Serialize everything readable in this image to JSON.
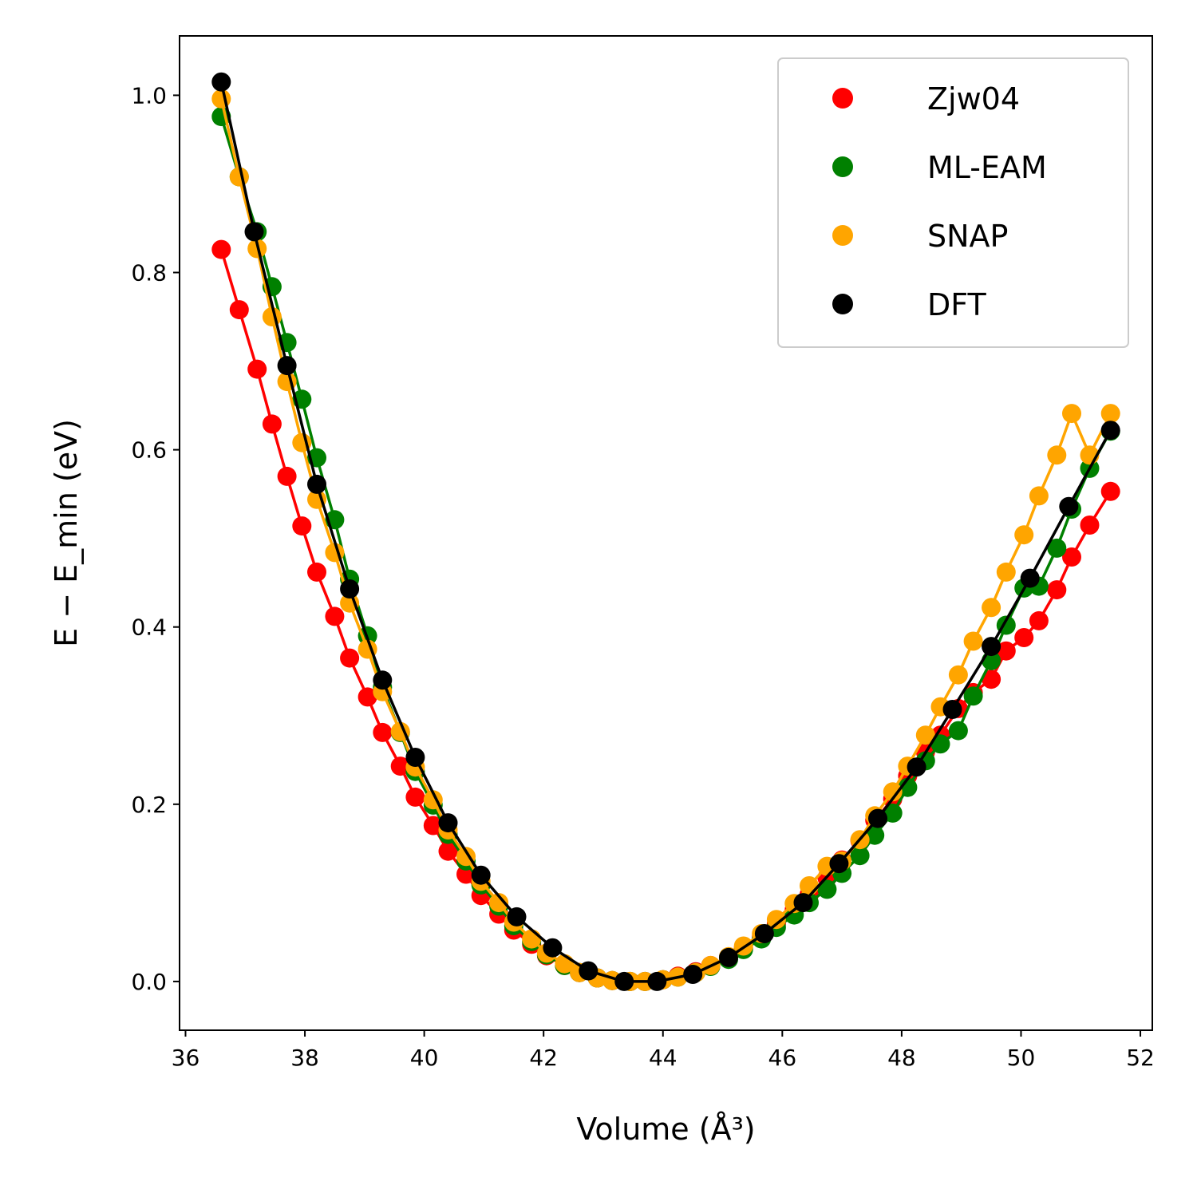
{
  "chart_data": {
    "type": "scatter",
    "xlabel": "Volume (Å³)",
    "ylabel": "E − E_min (eV)",
    "xlim": [
      35.9,
      52.2
    ],
    "ylim": [
      -0.055,
      1.067
    ],
    "xticks": [
      36,
      38,
      40,
      42,
      44,
      46,
      48,
      50,
      52
    ],
    "yticks": [
      0.0,
      0.2,
      0.4,
      0.6,
      0.8,
      1.0
    ],
    "xtick_labels": [
      "36",
      "38",
      "40",
      "42",
      "44",
      "46",
      "48",
      "50",
      "52"
    ],
    "ytick_labels": [
      "0.0",
      "0.2",
      "0.4",
      "0.6",
      "0.8",
      "1.0"
    ],
    "grid": false,
    "legend_position": "top-right",
    "series": [
      {
        "name": "Zjw04",
        "color": "#ff0000",
        "line": true,
        "x": [
          36.6,
          36.9,
          37.2,
          37.45,
          37.7,
          37.95,
          38.2,
          38.5,
          38.75,
          39.05,
          39.3,
          39.6,
          39.85,
          40.15,
          40.4,
          40.7,
          40.95,
          41.25,
          41.5,
          41.8,
          42.05,
          42.35,
          42.6,
          42.9,
          43.15,
          43.45,
          43.7,
          44.0,
          44.25,
          44.55,
          44.8,
          45.1,
          45.35,
          45.65,
          45.9,
          46.2,
          46.45,
          46.75,
          47.0,
          47.3,
          47.55,
          47.85,
          48.1,
          48.4,
          48.65,
          48.95,
          49.2,
          49.5,
          49.75,
          50.05,
          50.3,
          50.6,
          50.85,
          51.15,
          51.5
        ],
        "y": [
          0.826,
          0.758,
          0.691,
          0.629,
          0.57,
          0.514,
          0.462,
          0.412,
          0.365,
          0.321,
          0.281,
          0.243,
          0.208,
          0.176,
          0.147,
          0.121,
          0.097,
          0.076,
          0.058,
          0.042,
          0.029,
          0.018,
          0.01,
          0.004,
          0.001,
          0.0,
          0.0,
          0.002,
          0.006,
          0.011,
          0.018,
          0.027,
          0.038,
          0.051,
          0.065,
          0.081,
          0.098,
          0.117,
          0.137,
          0.159,
          0.182,
          0.206,
          0.232,
          0.259,
          0.278,
          0.308,
          0.326,
          0.341,
          0.373,
          0.388,
          0.407,
          0.442,
          0.479,
          0.515,
          0.553
        ]
      },
      {
        "name": "ML-EAM",
        "color": "#008000",
        "line": true,
        "x": [
          36.6,
          36.9,
          37.2,
          37.45,
          37.7,
          37.95,
          38.2,
          38.5,
          38.75,
          39.05,
          39.3,
          39.6,
          39.85,
          40.15,
          40.4,
          40.7,
          40.95,
          41.25,
          41.5,
          41.8,
          42.05,
          42.35,
          42.6,
          42.9,
          43.15,
          43.45,
          43.7,
          44.0,
          44.25,
          44.55,
          44.8,
          45.1,
          45.35,
          45.65,
          45.9,
          46.2,
          46.45,
          46.75,
          47.0,
          47.3,
          47.55,
          47.85,
          48.1,
          48.4,
          48.65,
          48.95,
          49.2,
          49.5,
          49.75,
          50.05,
          50.3,
          50.6,
          50.85,
          51.15,
          51.5
        ],
        "y": [
          0.976,
          0.908,
          0.846,
          0.784,
          0.721,
          0.657,
          0.591,
          0.521,
          0.454,
          0.39,
          0.332,
          0.281,
          0.237,
          0.199,
          0.166,
          0.136,
          0.109,
          0.085,
          0.063,
          0.045,
          0.03,
          0.018,
          0.01,
          0.004,
          0.001,
          0.0,
          0.0,
          0.002,
          0.005,
          0.01,
          0.017,
          0.025,
          0.036,
          0.048,
          0.061,
          0.075,
          0.089,
          0.104,
          0.122,
          0.142,
          0.165,
          0.19,
          0.219,
          0.249,
          0.268,
          0.283,
          0.322,
          0.362,
          0.402,
          0.444,
          0.446,
          0.489,
          0.533,
          0.579,
          0.621
        ]
      },
      {
        "name": "SNAP",
        "color": "#ffa500",
        "line": true,
        "x": [
          36.6,
          36.9,
          37.2,
          37.45,
          37.7,
          37.95,
          38.2,
          38.5,
          38.75,
          39.05,
          39.3,
          39.6,
          39.85,
          40.15,
          40.4,
          40.7,
          40.95,
          41.25,
          41.5,
          41.8,
          42.05,
          42.35,
          42.6,
          42.9,
          43.15,
          43.45,
          43.7,
          44.0,
          44.25,
          44.55,
          44.8,
          45.1,
          45.35,
          45.65,
          45.9,
          46.2,
          46.45,
          46.75,
          47.0,
          47.3,
          47.55,
          47.85,
          48.1,
          48.4,
          48.65,
          48.95,
          49.2,
          49.5,
          49.75,
          50.05,
          50.3,
          50.6,
          50.85,
          51.15,
          51.5
        ],
        "y": [
          0.996,
          0.908,
          0.827,
          0.75,
          0.677,
          0.608,
          0.544,
          0.484,
          0.427,
          0.375,
          0.327,
          0.282,
          0.242,
          0.205,
          0.171,
          0.141,
          0.113,
          0.089,
          0.067,
          0.048,
          0.032,
          0.02,
          0.01,
          0.004,
          0.001,
          0.0,
          0.0,
          0.002,
          0.005,
          0.01,
          0.018,
          0.028,
          0.04,
          0.054,
          0.07,
          0.088,
          0.108,
          0.13,
          0.136,
          0.16,
          0.187,
          0.214,
          0.243,
          0.278,
          0.31,
          0.346,
          0.384,
          0.422,
          0.462,
          0.504,
          0.548,
          0.594,
          0.641,
          0.594,
          0.641
        ]
      },
      {
        "name": "DFT",
        "color": "#000000",
        "line": true,
        "x": [
          36.6,
          37.15,
          37.7,
          38.2,
          38.75,
          39.3,
          39.85,
          40.4,
          40.95,
          41.55,
          42.15,
          42.75,
          43.35,
          43.9,
          44.5,
          45.1,
          45.7,
          46.35,
          46.95,
          47.6,
          48.25,
          48.85,
          49.5,
          50.15,
          50.8,
          51.5
        ],
        "y": [
          1.015,
          0.846,
          0.695,
          0.561,
          0.443,
          0.34,
          0.253,
          0.179,
          0.12,
          0.073,
          0.038,
          0.012,
          0.0,
          0.0,
          0.008,
          0.027,
          0.054,
          0.089,
          0.133,
          0.184,
          0.242,
          0.307,
          0.378,
          0.455,
          0.536,
          0.622
        ]
      }
    ]
  }
}
